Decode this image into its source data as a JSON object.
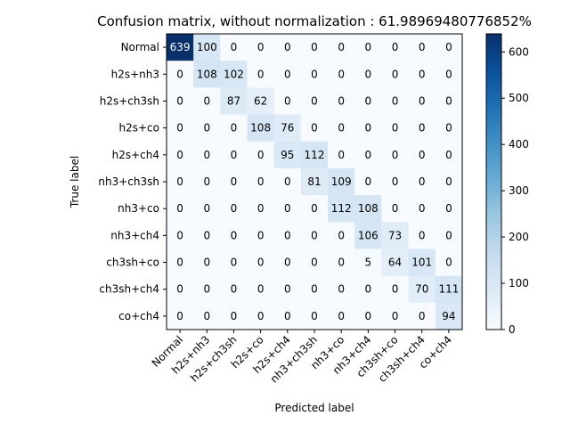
{
  "chart_data": {
    "type": "heatmap",
    "title": "Confusion matrix, without normalization : 61.98969480776852%",
    "xlabel": "Predicted label",
    "ylabel": "True label",
    "labels": [
      "Normal",
      "h2s+nh3",
      "h2s+ch3sh",
      "h2s+co",
      "h2s+ch4",
      "nh3+ch3sh",
      "nh3+co",
      "nh3+ch4",
      "ch3sh+co",
      "ch3sh+ch4",
      "co+ch4"
    ],
    "matrix": [
      [
        639,
        100,
        0,
        0,
        0,
        0,
        0,
        0,
        0,
        0,
        0
      ],
      [
        0,
        108,
        102,
        0,
        0,
        0,
        0,
        0,
        0,
        0,
        0
      ],
      [
        0,
        0,
        87,
        62,
        0,
        0,
        0,
        0,
        0,
        0,
        0
      ],
      [
        0,
        0,
        0,
        108,
        76,
        0,
        0,
        0,
        0,
        0,
        0
      ],
      [
        0,
        0,
        0,
        0,
        95,
        112,
        0,
        0,
        0,
        0,
        0
      ],
      [
        0,
        0,
        0,
        0,
        0,
        81,
        109,
        0,
        0,
        0,
        0
      ],
      [
        0,
        0,
        0,
        0,
        0,
        0,
        112,
        108,
        0,
        0,
        0
      ],
      [
        0,
        0,
        0,
        0,
        0,
        0,
        0,
        106,
        73,
        0,
        0
      ],
      [
        0,
        0,
        0,
        0,
        0,
        0,
        0,
        5,
        64,
        101,
        0
      ],
      [
        0,
        0,
        0,
        0,
        0,
        0,
        0,
        0,
        0,
        70,
        111
      ],
      [
        0,
        0,
        0,
        0,
        0,
        0,
        0,
        0,
        0,
        0,
        94
      ]
    ],
    "colormap": "Blues",
    "vmin": 0,
    "vmax": 639,
    "colorbar_ticks": [
      0,
      100,
      200,
      300,
      400,
      500,
      600
    ],
    "grid": false
  }
}
